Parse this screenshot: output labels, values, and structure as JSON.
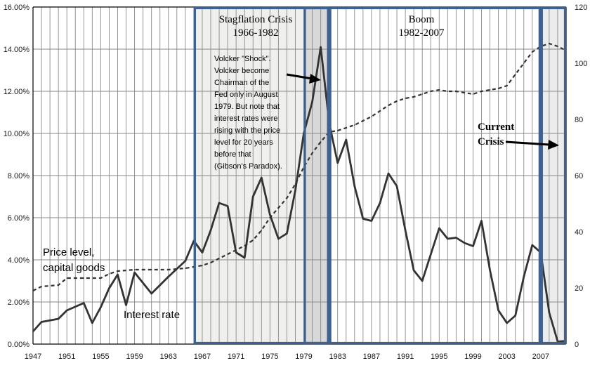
{
  "chart_data": {
    "type": "line",
    "x_range": [
      1947,
      2010
    ],
    "y_left_range": [
      0,
      16
    ],
    "y_right_range": [
      0,
      120
    ],
    "y_left_ticks": [
      "0.00%",
      "2.00%",
      "4.00%",
      "6.00%",
      "8.00%",
      "10.00%",
      "12.00%",
      "14.00%",
      "16.00%"
    ],
    "y_right_ticks": [
      "0",
      "20",
      "40",
      "60",
      "80",
      "100",
      "120"
    ],
    "x_ticks": [
      "1947",
      "1951",
      "1955",
      "1959",
      "1963",
      "1967",
      "1971",
      "1975",
      "1979",
      "1983",
      "1987",
      "1991",
      "1995",
      "1999",
      "2003",
      "2007"
    ],
    "grid": true,
    "series": [
      {
        "name": "Interest rate",
        "axis": "left",
        "style": "solid",
        "color": "#333333",
        "x": [
          1947,
          1948,
          1950,
          1951,
          1953,
          1954,
          1955,
          1956,
          1957,
          1958,
          1959,
          1961,
          1963,
          1965,
          1966,
          1967,
          1968,
          1969,
          1970,
          1971,
          1972,
          1973,
          1974,
          1975,
          1976,
          1977,
          1978,
          1979,
          1980,
          1981,
          1982,
          1983,
          1984,
          1985,
          1986,
          1987,
          1988,
          1989,
          1990,
          1991,
          1992,
          1993,
          1994,
          1995,
          1996,
          1997,
          1998,
          1999,
          2000,
          2001,
          2002,
          2003,
          2004,
          2005,
          2006,
          2007,
          2008,
          2009,
          2010
        ],
        "y": [
          0.6,
          1.05,
          1.2,
          1.6,
          1.95,
          1.0,
          1.75,
          2.65,
          3.3,
          1.85,
          3.4,
          2.4,
          3.2,
          3.95,
          4.9,
          4.35,
          5.4,
          6.7,
          6.55,
          4.35,
          4.1,
          7.0,
          7.9,
          6.15,
          5.0,
          5.25,
          7.3,
          10.0,
          11.5,
          14.1,
          10.5,
          8.6,
          9.7,
          7.5,
          5.95,
          5.85,
          6.7,
          8.1,
          7.5,
          5.4,
          3.5,
          3.0,
          4.25,
          5.5,
          5.0,
          5.05,
          4.8,
          4.65,
          5.85,
          3.5,
          1.6,
          1.0,
          1.35,
          3.2,
          4.7,
          4.35,
          1.5,
          0.12,
          0.15
        ]
      },
      {
        "name": "Price level, capital goods",
        "axis": "right",
        "style": "dashed",
        "color": "#333333",
        "x": [
          1947,
          1948,
          1950,
          1951,
          1953,
          1955,
          1956,
          1957,
          1959,
          1961,
          1963,
          1965,
          1966,
          1967,
          1968,
          1969,
          1970,
          1971,
          1972,
          1973,
          1974,
          1975,
          1976,
          1977,
          1978,
          1979,
          1980,
          1981,
          1982,
          1983,
          1984,
          1985,
          1986,
          1987,
          1988,
          1989,
          1990,
          1991,
          1992,
          1993,
          1994,
          1995,
          1996,
          1997,
          1998,
          1999,
          2000,
          2001,
          2002,
          2003,
          2004,
          2005,
          2006,
          2007,
          2008,
          2009,
          2010
        ],
        "y": [
          19,
          20.5,
          21,
          23.5,
          23.5,
          23.5,
          25,
          26,
          26.5,
          26.5,
          26.5,
          27,
          27.5,
          28,
          29,
          30.5,
          32,
          33.5,
          35,
          37,
          40.5,
          45,
          48.5,
          52,
          57,
          63,
          68,
          72,
          75.5,
          76,
          77,
          78,
          79.5,
          81,
          83,
          85,
          86.5,
          87.5,
          88,
          89,
          90,
          90.5,
          90,
          90,
          89.5,
          89,
          90,
          90.5,
          91,
          92,
          96,
          100,
          104,
          106,
          107,
          106,
          104.5
        ]
      }
    ],
    "regions": [
      {
        "label": "Stagflation Crisis",
        "sublabel": "1966-1982",
        "start": 1966,
        "end": 1982
      },
      {
        "label": "Boom",
        "sublabel": "1982-2007",
        "start": 1982,
        "end": 2007
      },
      {
        "label": "",
        "sublabel": "",
        "start": 1979,
        "end": 1982
      },
      {
        "label": "",
        "sublabel": "",
        "start": 2007,
        "end": 2010
      }
    ],
    "annotations": {
      "price_label": [
        "Price level,",
        "capital goods"
      ],
      "interest_label": "Interest rate",
      "volcker_note": [
        "Volcker \"Shock\".",
        "Volcker become",
        "Chairman of the",
        "Fed only in August",
        "1979. But note that",
        "interest rates were",
        "rising with the price",
        "level for 20 years",
        "before that",
        "(Gibson's Paradox)."
      ],
      "current_crisis": [
        "Current",
        "Crisis"
      ]
    }
  }
}
